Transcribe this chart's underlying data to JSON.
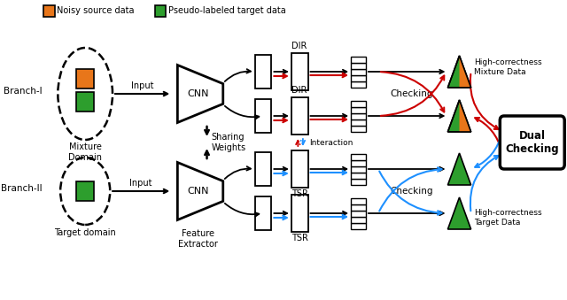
{
  "bg_color": "#ffffff",
  "noisy_color": "#E8761A",
  "pseudo_color": "#2D9E2D",
  "noisy_label": "Noisy source data",
  "pseudo_label": "Pseudo-labeled target data",
  "branch1_label": "Branch-I",
  "branch2_label": "Branch-II",
  "mixture_label": "Mixture\nDomain",
  "target_label": "Target domain",
  "cnn_label": "CNN",
  "feature_extractor_label": "Feature\nExtractor",
  "sharing_weights_label": "Sharing\nWeights",
  "interaction_label": "Interaction",
  "checking_label": "Checking",
  "dual_checking_label": "Dual\nChecking",
  "dir_label": "DIR",
  "tsr_label": "TSR",
  "high_correctness_mixture": "High-correctness\nMixture Data",
  "high_correctness_target": "High-correctness\nTarget Data",
  "input_label": "Input",
  "orange_color": "#E8761A",
  "green_color": "#2D9E2D",
  "red_color": "#CC0000",
  "blue_color": "#1E90FF"
}
